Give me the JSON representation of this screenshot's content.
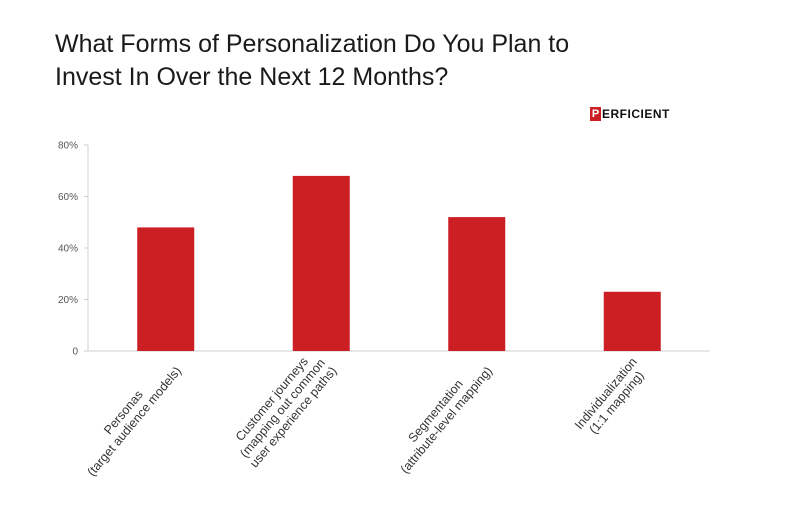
{
  "title_lines": [
    "What Forms of Personalization Do You Plan to",
    "Invest In Over the Next 12 Months?"
  ],
  "logo": {
    "mark": "P",
    "text": "ERFICIENT",
    "color": "#cc1f24"
  },
  "chart_data": {
    "type": "bar",
    "categories": [
      [
        "Personas",
        "(target audience models)"
      ],
      [
        "Customer journeys",
        "(mapping out common",
        "user experience paths)"
      ],
      [
        "Segmentation",
        "(attribute-level mapping)"
      ],
      [
        "Individualization",
        "(1:1 mapping)"
      ]
    ],
    "values": [
      48,
      68,
      52,
      23
    ],
    "ylim": [
      0,
      80
    ],
    "yticks": [
      0,
      20,
      40,
      60,
      80
    ],
    "ytick_labels": [
      "0",
      "20%",
      "40%",
      "60%",
      "80%"
    ],
    "bar_color": "#cc1f24",
    "grid": false
  }
}
